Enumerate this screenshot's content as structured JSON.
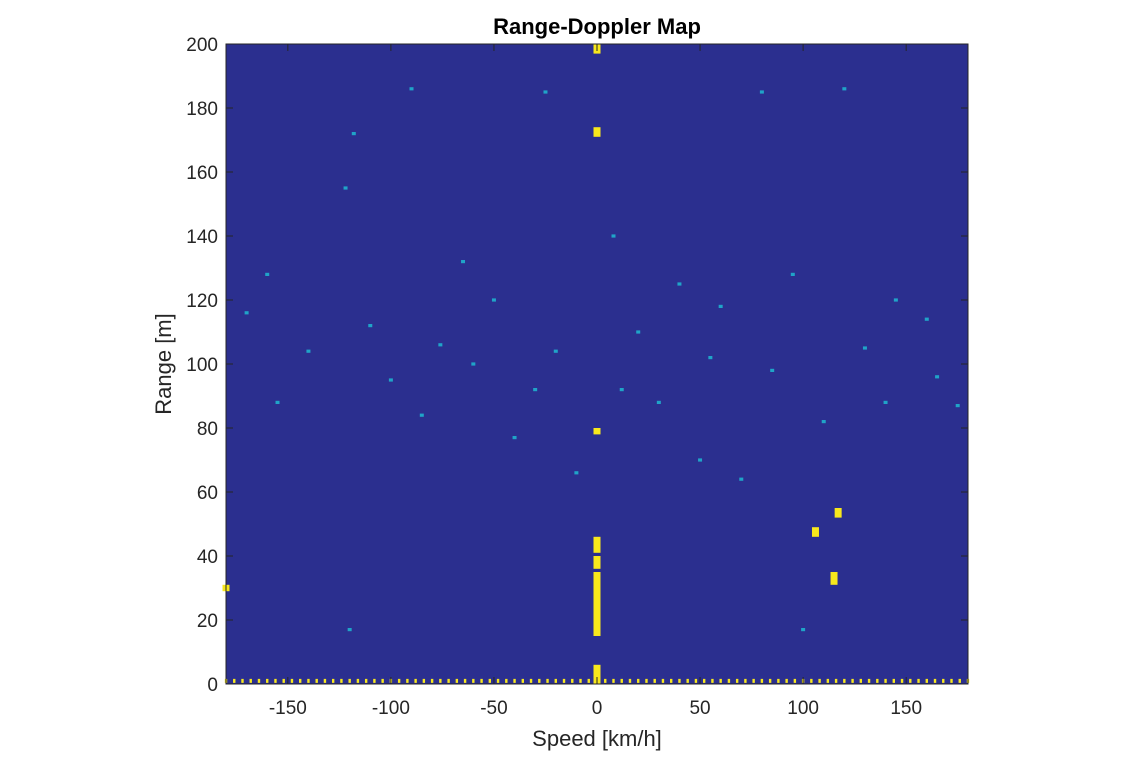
{
  "chart_data": {
    "type": "heatmap",
    "title": "Range-Doppler Map",
    "xlabel": "Speed [km/h]",
    "ylabel": "Range [m]",
    "xlim": [
      -180,
      180
    ],
    "ylim": [
      0,
      200
    ],
    "xticks": [
      -150,
      -100,
      -50,
      0,
      50,
      100,
      150
    ],
    "yticks": [
      0,
      20,
      40,
      60,
      80,
      100,
      120,
      140,
      160,
      180,
      200
    ],
    "colormap": {
      "low": "#2b2f8f",
      "mid": "#20a4c8",
      "high": "#f8e81c"
    },
    "grid": false,
    "strong_returns": [
      {
        "speed": 0,
        "range_from": 15,
        "range_to": 35
      },
      {
        "speed": 0,
        "range_from": 36,
        "range_to": 40
      },
      {
        "speed": 0,
        "range_from": 41,
        "range_to": 46
      },
      {
        "speed": 0,
        "range_from": 0,
        "range_to": 6
      },
      {
        "speed": 0,
        "range_from": 197,
        "range_to": 200
      },
      {
        "speed": 0,
        "range_from": 171,
        "range_to": 174
      },
      {
        "speed": 0,
        "range_from": 78,
        "range_to": 80
      },
      {
        "speed": 106,
        "range_from": 46,
        "range_to": 49
      },
      {
        "speed": 117,
        "range_from": 52,
        "range_to": 55
      },
      {
        "speed": 115,
        "range_from": 31,
        "range_to": 35
      },
      {
        "speed": -180,
        "range_from": 29,
        "range_to": 31
      }
    ],
    "weak_returns": [
      {
        "speed": -155,
        "range": 88
      },
      {
        "speed": -76,
        "range": 106
      },
      {
        "speed": -65,
        "range": 132
      },
      {
        "speed": -40,
        "range": 77
      },
      {
        "speed": -120,
        "range": 17
      },
      {
        "speed": 40,
        "range": 125
      },
      {
        "speed": 30,
        "range": 88
      },
      {
        "speed": 100,
        "range": 17
      },
      {
        "speed": 160,
        "range": 114
      },
      {
        "speed": -118,
        "range": 172
      },
      {
        "speed": -122,
        "range": 155
      },
      {
        "speed": 12,
        "range": 92
      },
      {
        "speed": -20,
        "range": 104
      },
      {
        "speed": 60,
        "range": 118
      },
      {
        "speed": 140,
        "range": 88
      },
      {
        "speed": -170,
        "range": 116
      },
      {
        "speed": 85,
        "range": 98
      },
      {
        "speed": -100,
        "range": 95
      },
      {
        "speed": 50,
        "range": 70
      },
      {
        "speed": -50,
        "range": 120
      },
      {
        "speed": 130,
        "range": 105
      },
      {
        "speed": 95,
        "range": 128
      },
      {
        "speed": -140,
        "range": 104
      },
      {
        "speed": 20,
        "range": 110
      },
      {
        "speed": -30,
        "range": 92
      },
      {
        "speed": 70,
        "range": 64
      },
      {
        "speed": 165,
        "range": 96
      },
      {
        "speed": -85,
        "range": 84
      },
      {
        "speed": 110,
        "range": 82
      },
      {
        "speed": -10,
        "range": 66
      },
      {
        "speed": 175,
        "range": 87
      },
      {
        "speed": -60,
        "range": 100
      },
      {
        "speed": 55,
        "range": 102
      },
      {
        "speed": -160,
        "range": 128
      },
      {
        "speed": 145,
        "range": 120
      },
      {
        "speed": -110,
        "range": 112
      },
      {
        "speed": 8,
        "range": 140
      },
      {
        "speed": -25,
        "range": 185
      },
      {
        "speed": 80,
        "range": 185
      },
      {
        "speed": -90,
        "range": 186
      },
      {
        "speed": 120,
        "range": 186
      }
    ]
  }
}
